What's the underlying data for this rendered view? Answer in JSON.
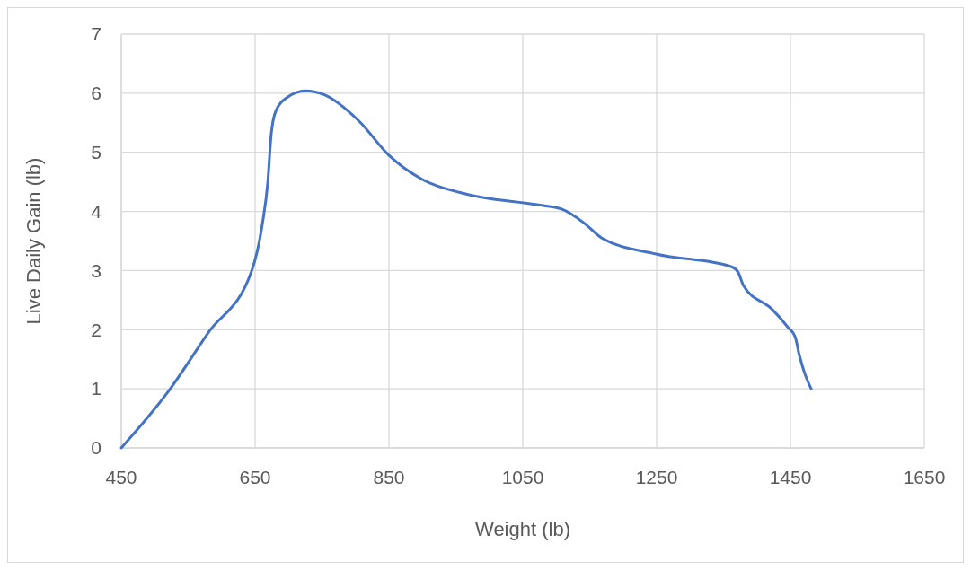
{
  "chart_data": {
    "type": "line",
    "xlabel": "Weight (lb)",
    "ylabel": "Live Daily Gain (lb)",
    "x": [
      450,
      520,
      580,
      645,
      661,
      669,
      674,
      681,
      698,
      725,
      752,
      806,
      849,
      900,
      967,
      1074,
      1108,
      1141,
      1168,
      1249,
      1363,
      1372,
      1380,
      1423,
      1447,
      1457,
      1463,
      1471,
      1481
    ],
    "series": [
      {
        "color": "#4472c4",
        "values": [
          0,
          0.95,
          1.95,
          3,
          3.8,
          4.5,
          5.3,
          5.7,
          5.93,
          6.04,
          5.98,
          5.52,
          4.96,
          4.54,
          4.29,
          4.11,
          4.04,
          3.81,
          3.55,
          3.28,
          3.06,
          2.97,
          2.74,
          2.34,
          2.03,
          1.88,
          1.58,
          1.27,
          1.0
        ]
      }
    ],
    "xlim": [
      450,
      1650
    ],
    "xticks": [
      450,
      650,
      850,
      1050,
      1250,
      1450,
      1650
    ],
    "ylim": [
      0,
      7
    ],
    "yticks": [
      0,
      1,
      2,
      3,
      4,
      5,
      6,
      7
    ],
    "grid": true,
    "marker": "none",
    "line_style": "solid"
  }
}
